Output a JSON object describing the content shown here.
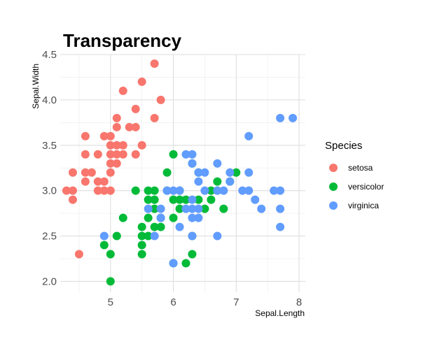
{
  "chart_data": {
    "type": "scatter",
    "title": "Transparency",
    "xlabel": "Sepal.Length",
    "ylabel": "Sepal.Width",
    "xlim": [
      4.2,
      8.1
    ],
    "ylim": [
      1.88,
      4.5
    ],
    "x_ticks": [
      5,
      6,
      7,
      8
    ],
    "y_ticks": [
      2.0,
      2.5,
      3.0,
      3.5,
      4.0,
      4.5
    ],
    "grid": true,
    "legend": {
      "title": "Species",
      "position": "right"
    },
    "series": [
      {
        "name": "setosa",
        "color": "#F8766D",
        "points": [
          [
            4.3,
            3.0
          ],
          [
            4.4,
            2.9
          ],
          [
            4.4,
            3.0
          ],
          [
            4.4,
            3.2
          ],
          [
            4.5,
            2.3
          ],
          [
            4.6,
            3.1
          ],
          [
            4.6,
            3.4
          ],
          [
            4.6,
            3.6
          ],
          [
            4.6,
            3.2
          ],
          [
            4.7,
            3.2
          ],
          [
            4.8,
            3.4
          ],
          [
            4.8,
            3.0
          ],
          [
            4.8,
            3.1
          ],
          [
            4.9,
            3.0
          ],
          [
            4.9,
            3.1
          ],
          [
            4.9,
            3.6
          ],
          [
            5.0,
            3.6
          ],
          [
            5.0,
            3.4
          ],
          [
            5.0,
            3.0
          ],
          [
            5.0,
            3.3
          ],
          [
            5.0,
            3.5
          ],
          [
            5.0,
            3.2
          ],
          [
            5.1,
            3.5
          ],
          [
            5.1,
            3.8
          ],
          [
            5.1,
            3.7
          ],
          [
            5.1,
            3.3
          ],
          [
            5.1,
            3.4
          ],
          [
            5.2,
            3.5
          ],
          [
            5.2,
            3.4
          ],
          [
            5.2,
            4.1
          ],
          [
            5.3,
            3.7
          ],
          [
            5.4,
            3.9
          ],
          [
            5.4,
            3.7
          ],
          [
            5.4,
            3.4
          ],
          [
            5.5,
            4.2
          ],
          [
            5.5,
            3.5
          ],
          [
            5.7,
            4.4
          ],
          [
            5.7,
            3.8
          ],
          [
            5.8,
            4.0
          ]
        ]
      },
      {
        "name": "versicolor",
        "color": "#00BA38",
        "points": [
          [
            4.9,
            2.4
          ],
          [
            5.0,
            2.0
          ],
          [
            5.0,
            2.3
          ],
          [
            5.1,
            2.5
          ],
          [
            5.2,
            2.7
          ],
          [
            5.4,
            3.0
          ],
          [
            5.5,
            2.3
          ],
          [
            5.5,
            2.4
          ],
          [
            5.5,
            2.5
          ],
          [
            5.5,
            2.6
          ],
          [
            5.6,
            2.9
          ],
          [
            5.6,
            3.0
          ],
          [
            5.6,
            2.5
          ],
          [
            5.6,
            2.7
          ],
          [
            5.7,
            2.8
          ],
          [
            5.7,
            2.6
          ],
          [
            5.7,
            2.9
          ],
          [
            5.7,
            3.0
          ],
          [
            5.8,
            2.7
          ],
          [
            5.8,
            2.6
          ],
          [
            5.9,
            3.0
          ],
          [
            5.9,
            3.2
          ],
          [
            6.0,
            2.2
          ],
          [
            6.0,
            2.9
          ],
          [
            6.0,
            2.7
          ],
          [
            6.0,
            3.4
          ],
          [
            6.1,
            2.9
          ],
          [
            6.1,
            2.8
          ],
          [
            6.1,
            3.0
          ],
          [
            6.2,
            2.2
          ],
          [
            6.2,
            2.9
          ],
          [
            6.3,
            3.3
          ],
          [
            6.3,
            2.5
          ],
          [
            6.3,
            2.3
          ],
          [
            6.4,
            3.2
          ],
          [
            6.4,
            2.9
          ],
          [
            6.5,
            2.8
          ],
          [
            6.6,
            2.9
          ],
          [
            6.6,
            3.0
          ],
          [
            6.7,
            3.1
          ],
          [
            6.7,
            3.0
          ],
          [
            6.8,
            2.8
          ],
          [
            6.9,
            3.1
          ],
          [
            7.0,
            3.2
          ]
        ]
      },
      {
        "name": "virginica",
        "color": "#619CFF",
        "points": [
          [
            4.9,
            2.5
          ],
          [
            5.6,
            2.8
          ],
          [
            5.7,
            2.5
          ],
          [
            5.8,
            2.7
          ],
          [
            5.8,
            2.8
          ],
          [
            5.9,
            3.0
          ],
          [
            6.0,
            2.2
          ],
          [
            6.0,
            3.0
          ],
          [
            6.1,
            3.0
          ],
          [
            6.1,
            2.6
          ],
          [
            6.2,
            2.8
          ],
          [
            6.2,
            3.4
          ],
          [
            6.3,
            3.3
          ],
          [
            6.3,
            2.9
          ],
          [
            6.3,
            2.7
          ],
          [
            6.3,
            2.5
          ],
          [
            6.3,
            2.8
          ],
          [
            6.3,
            3.4
          ],
          [
            6.4,
            2.7
          ],
          [
            6.4,
            3.2
          ],
          [
            6.4,
            2.8
          ],
          [
            6.4,
            3.1
          ],
          [
            6.5,
            3.0
          ],
          [
            6.5,
            3.2
          ],
          [
            6.7,
            2.5
          ],
          [
            6.7,
            3.3
          ],
          [
            6.7,
            3.0
          ],
          [
            6.8,
            3.0
          ],
          [
            6.9,
            3.1
          ],
          [
            6.9,
            3.2
          ],
          [
            7.1,
            3.0
          ],
          [
            7.2,
            3.6
          ],
          [
            7.2,
            3.2
          ],
          [
            7.2,
            3.0
          ],
          [
            7.3,
            2.9
          ],
          [
            7.4,
            2.8
          ],
          [
            7.6,
            3.0
          ],
          [
            7.7,
            3.8
          ],
          [
            7.7,
            2.6
          ],
          [
            7.7,
            2.8
          ],
          [
            7.7,
            3.0
          ],
          [
            7.9,
            3.8
          ]
        ]
      }
    ]
  }
}
